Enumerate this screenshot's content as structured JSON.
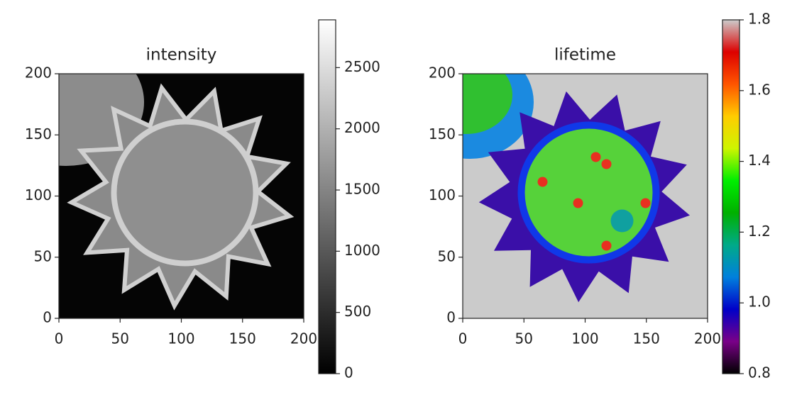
{
  "chart_data": [
    {
      "type": "image",
      "title": "intensity",
      "xlim": [
        0,
        200
      ],
      "ylim": [
        0,
        200
      ],
      "xticks": [
        0,
        50,
        100,
        150,
        200
      ],
      "yticks": [
        0,
        50,
        100,
        150,
        200
      ],
      "colorbar": {
        "lim": [
          0,
          2890
        ],
        "ticks": [
          0,
          500,
          1000,
          1500,
          2000,
          2500
        ],
        "colors": [
          "#000000",
          "#ffffff"
        ]
      }
    },
    {
      "type": "image",
      "title": "lifetime",
      "xlim": [
        0,
        200
      ],
      "ylim": [
        0,
        200
      ],
      "xticks": [
        0,
        50,
        100,
        150,
        200
      ],
      "yticks": [
        0,
        50,
        100,
        150,
        200
      ],
      "colorbar": {
        "lim": [
          0.8,
          1.8
        ],
        "ticks": [
          0.8,
          {
            "value": 1,
            "label": "1.0"
          },
          1.2,
          1.4,
          1.6,
          1.8
        ],
        "colors": [
          "#000000",
          "#7a0088",
          "#0000c8",
          "#0080dd",
          "#00aa88",
          "#00b000",
          "#00ee00",
          "#cef500",
          "#ffcc00",
          "#ff5500",
          "#dd0000",
          "#cccccc"
        ]
      }
    }
  ]
}
